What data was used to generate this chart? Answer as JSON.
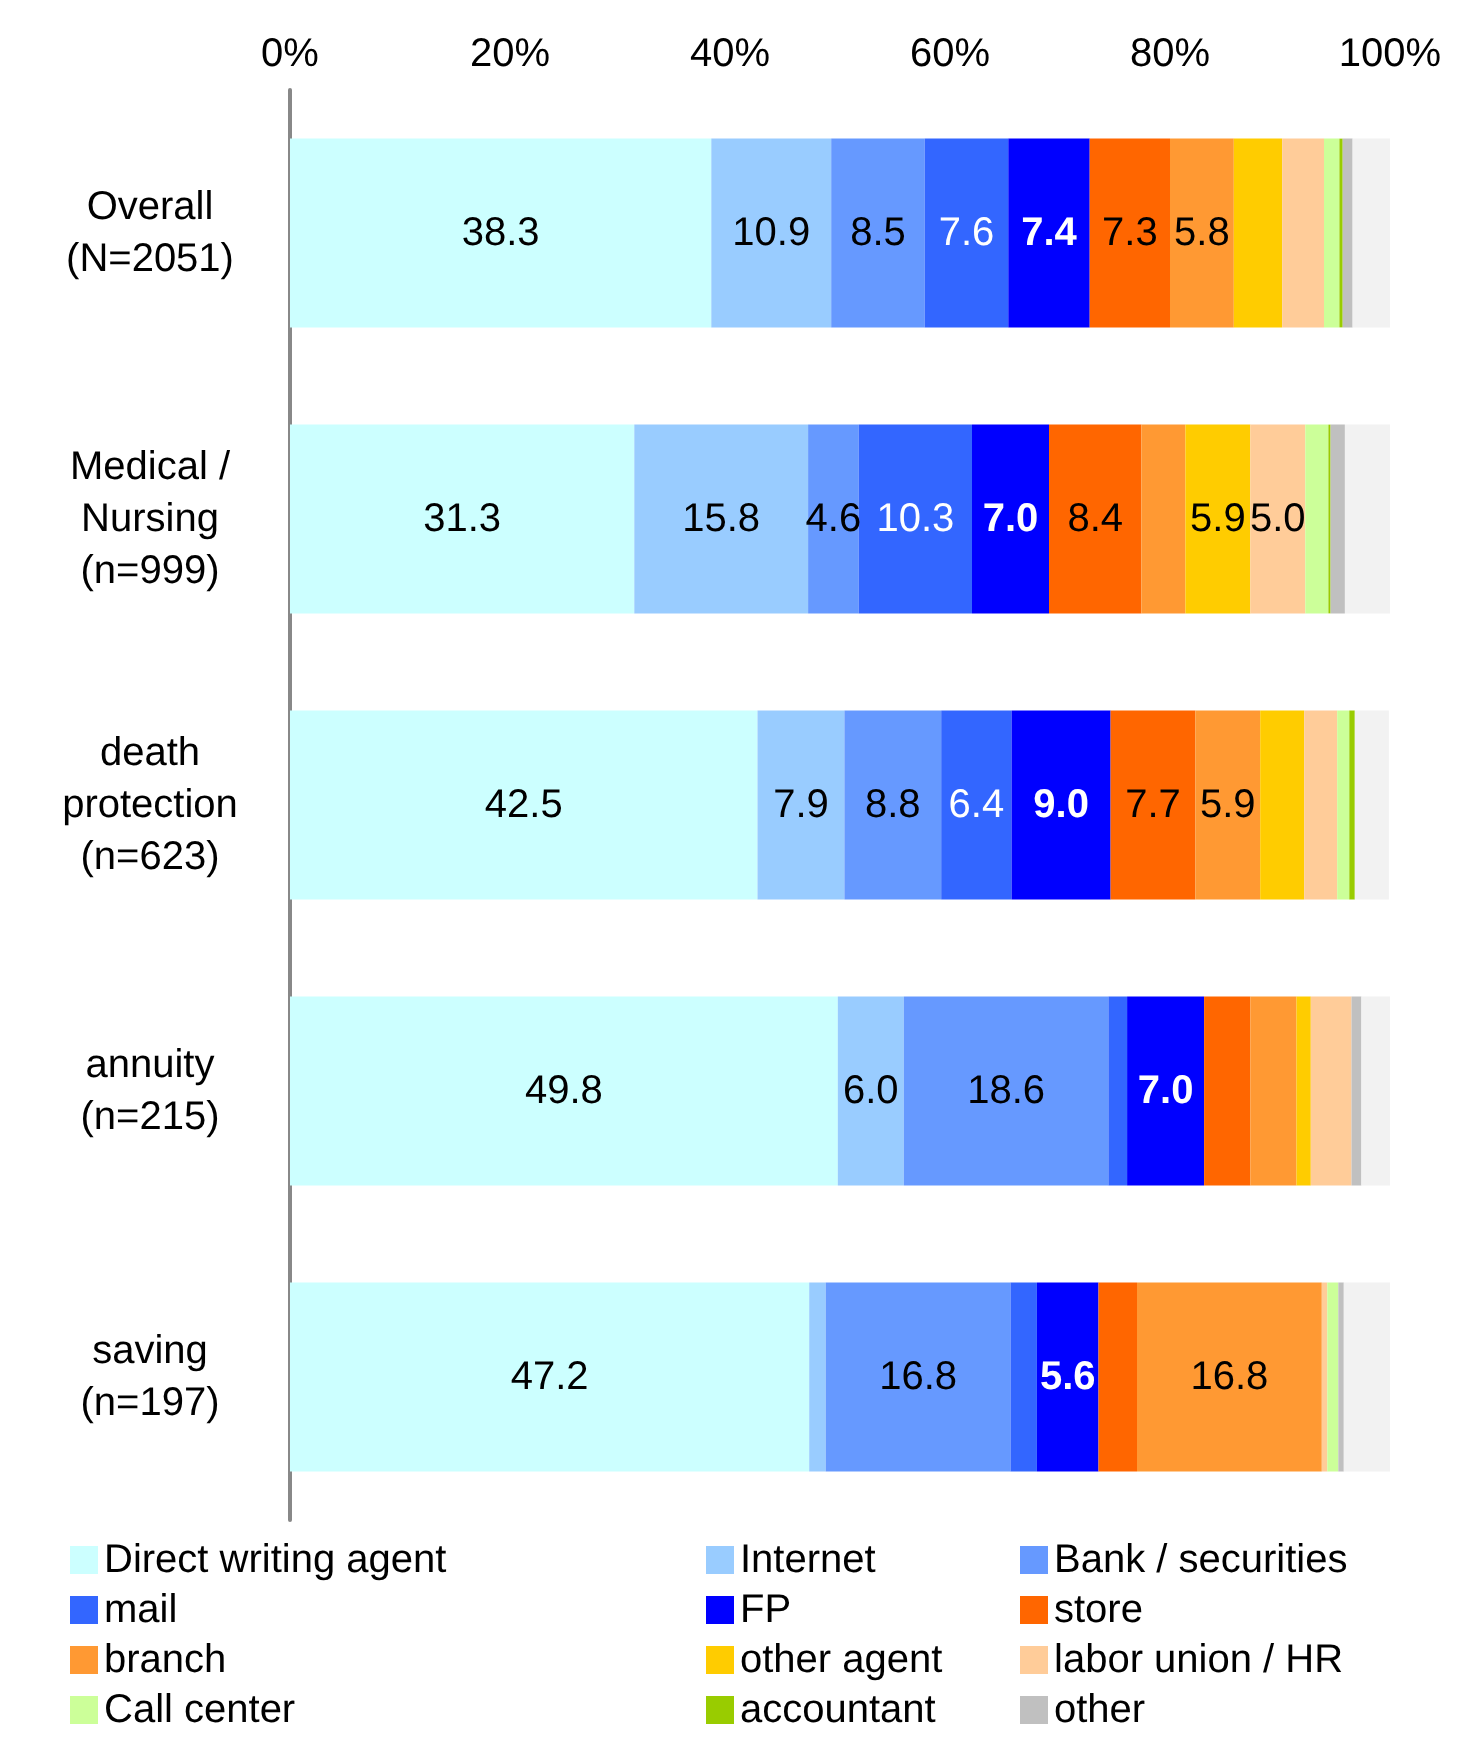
{
  "chart_data": {
    "type": "bar",
    "orientation": "horizontal",
    "stacked": true,
    "categories": [
      "Overall\n(N=2051)",
      "Medical /\nNursing\n(n=999)",
      "death\nprotection\n(n=623)",
      "annuity\n(n=215)",
      "saving\n(n=197)"
    ],
    "xlim": [
      0,
      100
    ],
    "xticks": [
      {
        "value": 0,
        "label": "0%"
      },
      {
        "value": 20,
        "label": "20%"
      },
      {
        "value": 40,
        "label": "40%"
      },
      {
        "value": 60,
        "label": "60%"
      },
      {
        "value": 80,
        "label": "80%"
      },
      {
        "value": 100,
        "label": "100%"
      }
    ],
    "grid": false,
    "legend": "bottom",
    "series": [
      {
        "name": "Direct writing agent",
        "color": "#ccffff",
        "values": [
          38.3,
          31.3,
          42.5,
          49.8,
          47.2
        ],
        "value_labels": [
          "38.3",
          "31.3",
          "42.5",
          "49.8",
          "47.2"
        ]
      },
      {
        "name": "Internet",
        "color": "#99ccff",
        "values": [
          10.9,
          15.8,
          7.9,
          6.0,
          1.5
        ],
        "value_labels": [
          "10.9",
          "15.8",
          "7.9",
          "6.0",
          null
        ]
      },
      {
        "name": "Bank / securities",
        "color": "#6699ff",
        "values": [
          8.5,
          4.6,
          8.8,
          18.6,
          16.8
        ],
        "value_labels": [
          "8.5",
          "4.6",
          "8.8",
          "18.6",
          "16.8"
        ]
      },
      {
        "name": "mail",
        "color": "#3366ff",
        "values": [
          7.6,
          10.3,
          6.4,
          1.7,
          2.4
        ],
        "value_labels": [
          "7.6",
          "10.3",
          "6.4",
          null,
          null
        ]
      },
      {
        "name": "FP",
        "color": "#0000ff",
        "values": [
          7.4,
          7.0,
          9.0,
          7.0,
          5.6
        ],
        "value_labels": [
          "7.4",
          "7.0",
          "9.0",
          "7.0",
          "5.6"
        ]
      },
      {
        "name": "store",
        "color": "#ff6600",
        "values": [
          7.3,
          8.4,
          7.7,
          4.2,
          3.5
        ],
        "value_labels": [
          "7.3",
          "8.4",
          "7.7",
          null,
          null
        ]
      },
      {
        "name": "branch",
        "color": "#ff9933",
        "values": [
          5.8,
          4.0,
          5.9,
          4.2,
          16.8
        ],
        "value_labels": [
          "5.8",
          null,
          "5.9",
          null,
          "16.8"
        ]
      },
      {
        "name": "other agent",
        "color": "#ffcc00",
        "values": [
          4.4,
          5.9,
          4.0,
          1.3,
          0
        ],
        "value_labels": [
          null,
          "5.9",
          null,
          null,
          null
        ]
      },
      {
        "name": "labor union / HR",
        "color": "#ffcc99",
        "values": [
          3.8,
          5.0,
          3.0,
          3.7,
          0.5
        ],
        "value_labels": [
          null,
          "5.0",
          null,
          null,
          null
        ]
      },
      {
        "name": "Call center",
        "color": "#ccff99",
        "values": [
          1.4,
          2.1,
          1.1,
          0,
          1.0
        ]
      },
      {
        "name": "accountant",
        "color": "#99cc00",
        "values": [
          0.3,
          0.2,
          0.5,
          0,
          0
        ]
      },
      {
        "name": "other",
        "color": "#c0c0c0",
        "values": [
          0.9,
          1.3,
          null,
          0.9,
          0.5
        ]
      },
      {
        "color": "#f2f2f2",
        "values": [
          3.4,
          4.1,
          3.1,
          2.6,
          4.2
        ]
      }
    ]
  }
}
